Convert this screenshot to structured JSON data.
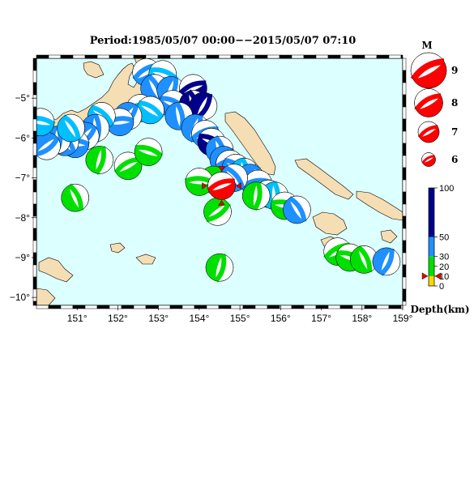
{
  "title": "Period:1985/05/07 00:00−−2015/05/07 07:10",
  "lon_ticks": [
    {
      "label": "151°",
      "value": 151
    },
    {
      "label": "152°",
      "value": 152
    },
    {
      "label": "153°",
      "value": 153
    },
    {
      "label": "154°",
      "value": 154
    },
    {
      "label": "155°",
      "value": 155
    },
    {
      "label": "156°",
      "value": 156
    },
    {
      "label": "157°",
      "value": 157
    },
    {
      "label": "158°",
      "value": 158
    },
    {
      "label": "159°",
      "value": 159
    }
  ],
  "lat_ticks": [
    {
      "label": "−5°",
      "value": -5
    },
    {
      "label": "−6°",
      "value": -6
    },
    {
      "label": "−7°",
      "value": -7
    },
    {
      "label": "−8°",
      "value": -8
    },
    {
      "label": "−9°",
      "value": -9
    },
    {
      "label": "−10°",
      "value": -10
    }
  ],
  "magnitude_legend": {
    "title": "M",
    "entries": [
      {
        "label": "9",
        "value": 9
      },
      {
        "label": "8",
        "value": 8
      },
      {
        "label": "7",
        "value": 7
      },
      {
        "label": "6",
        "value": 6
      }
    ]
  },
  "depth_legend": {
    "title": "Depth(km)",
    "ticks": [
      {
        "label": "100",
        "value": 100
      },
      {
        "label": "50",
        "value": 50
      },
      {
        "label": "30",
        "value": 30
      },
      {
        "label": "20",
        "value": 20
      },
      {
        "label": "10",
        "value": 10
      },
      {
        "label": "0",
        "value": 0
      }
    ],
    "marker_depth": 10
  },
  "colors": {
    "ocean": "#dcffff",
    "land": "#f5deb3",
    "deep": "#00008b",
    "intermediate": "#1e90ff",
    "mid": "#00bfff",
    "shallow": "#00e000",
    "very_shallow": "#ffd700",
    "mainshock": "#ff0000"
  },
  "mainshock": {
    "lon": 154.55,
    "lat": -7.2,
    "color_key": "mainshock",
    "magnitude": 7.5
  },
  "events": [
    {
      "lon": 152.7,
      "lat": -4.35,
      "color_key": "intermediate"
    },
    {
      "lon": 153.1,
      "lat": -4.4,
      "color_key": "mid"
    },
    {
      "lon": 152.9,
      "lat": -4.75,
      "color_key": "intermediate"
    },
    {
      "lon": 153.3,
      "lat": -4.8,
      "color_key": "intermediate"
    },
    {
      "lon": 153.85,
      "lat": -4.75,
      "color_key": "deep"
    },
    {
      "lon": 153.35,
      "lat": -5.15,
      "color_key": "intermediate"
    },
    {
      "lon": 153.85,
      "lat": -5.15,
      "color_key": "deep"
    },
    {
      "lon": 154.1,
      "lat": -5.2,
      "color_key": "deep"
    },
    {
      "lon": 152.55,
      "lat": -5.25,
      "color_key": "mid"
    },
    {
      "lon": 152.8,
      "lat": -5.3,
      "color_key": "mid"
    },
    {
      "lon": 153.5,
      "lat": -5.45,
      "color_key": "intermediate"
    },
    {
      "lon": 152.25,
      "lat": -5.45,
      "color_key": "intermediate"
    },
    {
      "lon": 152.05,
      "lat": -5.6,
      "color_key": "intermediate"
    },
    {
      "lon": 151.6,
      "lat": -5.45,
      "color_key": "mid"
    },
    {
      "lon": 151.45,
      "lat": -5.75,
      "color_key": "intermediate"
    },
    {
      "lon": 151.2,
      "lat": -5.95,
      "color_key": "intermediate"
    },
    {
      "lon": 150.95,
      "lat": -6.15,
      "color_key": "intermediate"
    },
    {
      "lon": 150.7,
      "lat": -6.1,
      "color_key": "intermediate"
    },
    {
      "lon": 150.5,
      "lat": -6.05,
      "color_key": "intermediate"
    },
    {
      "lon": 150.25,
      "lat": -6.2,
      "color_key": "intermediate"
    },
    {
      "lon": 150.1,
      "lat": -5.6,
      "color_key": "mid"
    },
    {
      "lon": 150.85,
      "lat": -5.75,
      "color_key": "mid"
    },
    {
      "lon": 151.55,
      "lat": -6.55,
      "color_key": "shallow"
    },
    {
      "lon": 152.25,
      "lat": -6.7,
      "color_key": "shallow"
    },
    {
      "lon": 152.75,
      "lat": -6.35,
      "color_key": "shallow"
    },
    {
      "lon": 150.95,
      "lat": -7.5,
      "color_key": "shallow"
    },
    {
      "lon": 153.9,
      "lat": -5.75,
      "color_key": "intermediate"
    },
    {
      "lon": 154.15,
      "lat": -5.9,
      "color_key": "intermediate"
    },
    {
      "lon": 154.3,
      "lat": -6.1,
      "color_key": "deep"
    },
    {
      "lon": 154.5,
      "lat": -6.3,
      "color_key": "intermediate"
    },
    {
      "lon": 154.6,
      "lat": -6.55,
      "color_key": "intermediate"
    },
    {
      "lon": 154.75,
      "lat": -6.65,
      "color_key": "intermediate"
    },
    {
      "lon": 154.9,
      "lat": -6.75,
      "color_key": "intermediate"
    },
    {
      "lon": 155.1,
      "lat": -6.85,
      "color_key": "mid"
    },
    {
      "lon": 155.25,
      "lat": -7.0,
      "color_key": "intermediate"
    },
    {
      "lon": 155.45,
      "lat": -7.15,
      "color_key": "intermediate"
    },
    {
      "lon": 155.7,
      "lat": -7.4,
      "color_key": "mid"
    },
    {
      "lon": 155.85,
      "lat": -7.45,
      "color_key": "mid"
    },
    {
      "lon": 154.35,
      "lat": -7.05,
      "color_key": "shallow"
    },
    {
      "lon": 154.0,
      "lat": -7.1,
      "color_key": "shallow"
    },
    {
      "lon": 154.85,
      "lat": -7.0,
      "color_key": "intermediate"
    },
    {
      "lon": 155.4,
      "lat": -7.45,
      "color_key": "shallow"
    },
    {
      "lon": 154.45,
      "lat": -7.85,
      "color_key": "shallow"
    },
    {
      "lon": 156.1,
      "lat": -7.7,
      "color_key": "shallow"
    },
    {
      "lon": 156.4,
      "lat": -7.8,
      "color_key": "intermediate"
    },
    {
      "lon": 154.5,
      "lat": -9.25,
      "color_key": "shallow"
    },
    {
      "lon": 157.4,
      "lat": -8.85,
      "color_key": "shallow"
    },
    {
      "lon": 157.7,
      "lat": -9.0,
      "color_key": "shallow"
    },
    {
      "lon": 158.05,
      "lat": -9.05,
      "color_key": "shallow"
    },
    {
      "lon": 158.6,
      "lat": -9.1,
      "color_key": "intermediate"
    }
  ]
}
